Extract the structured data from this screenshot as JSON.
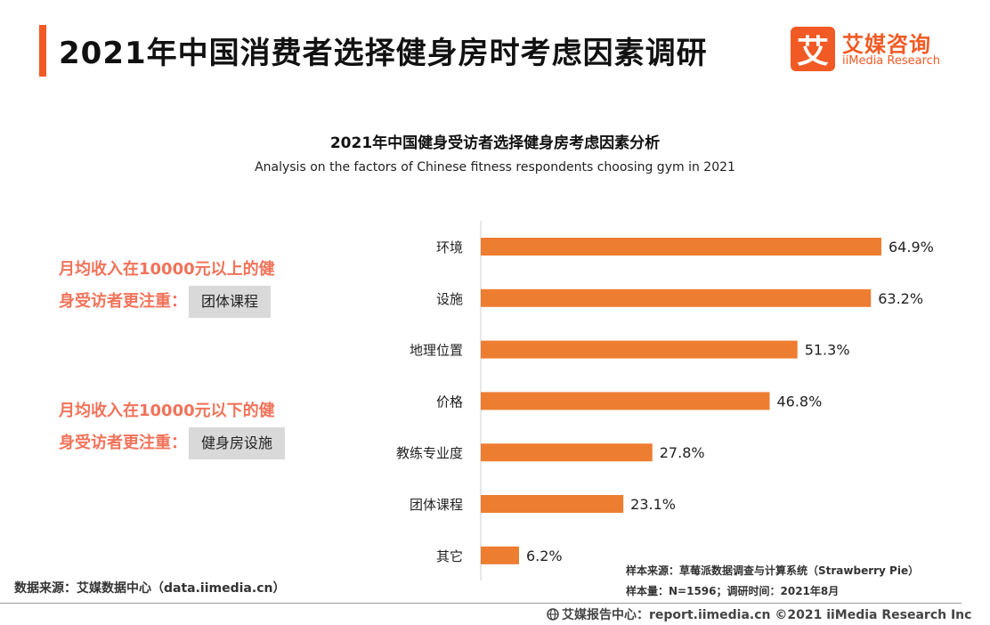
{
  "header": {
    "title": "2021年中国消费者选择健身房时考虑因素调研",
    "logo_mark": "艾",
    "logo_cn": "艾媒咨询",
    "logo_en": "iiMedia Research"
  },
  "notes": [
    {
      "line1": "月均收入在10000元以上的健",
      "line2": "身受访者更注重：",
      "tag": "团体课程"
    },
    {
      "line1": "月均收入在10000元以下的健",
      "line2": "身受访者更注重：",
      "tag": "健身房设施"
    }
  ],
  "source_left": "数据来源：艾媒数据中心（data.iimedia.cn）",
  "sample_source": "样本来源：草莓派数据调查与计算系统（Strawberry Pie）",
  "sample_size": "样本量：N=1596；调研时间：2021年8月",
  "footer": "艾媒报告中心：report.iimedia.cn  ©2021  iiMedia Research  Inc",
  "colors": {
    "accent": "#f15a24",
    "bar": "#ed7d31",
    "note": "#f0735a",
    "tag_bg": "#d9d9d9"
  },
  "chart_data": {
    "type": "bar",
    "orientation": "horizontal",
    "title": "2021年中国健身受访者选择健身房考虑因素分析",
    "subtitle": "Analysis on the factors of Chinese fitness respondents choosing gym in 2021",
    "categories": [
      "环境",
      "设施",
      "地理位置",
      "价格",
      "教练专业度",
      "团体课程",
      "其它"
    ],
    "values": [
      64.9,
      63.2,
      51.3,
      46.8,
      27.8,
      23.1,
      6.2
    ],
    "value_labels": [
      "64.9%",
      "63.2%",
      "51.3%",
      "46.8%",
      "27.8%",
      "23.1%",
      "6.2%"
    ],
    "unit": "%",
    "xlim": [
      0,
      64.9
    ],
    "grid": false,
    "legend": "none"
  }
}
